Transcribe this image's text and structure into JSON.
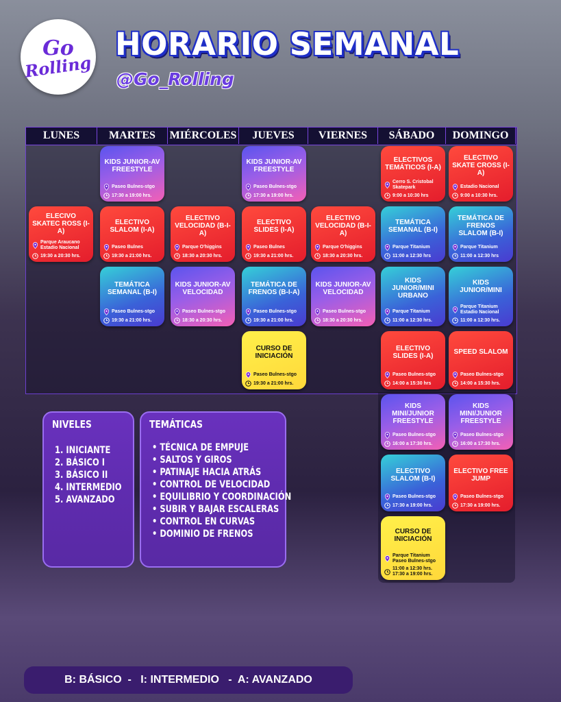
{
  "logo": [
    "Go",
    "Rolling"
  ],
  "header": {
    "title": "HORARIO SEMANAL",
    "handle": "@Go_Rolling"
  },
  "schedule": {
    "days": [
      "LUNES",
      "MARTES",
      "MIÉRCOLES",
      "JUEVES",
      "VIERNES",
      "SÁBADO",
      "DOMINGO"
    ],
    "rows": [
      [
        null,
        {
          "title": "KIDS JUNIOR-AV FREESTYLE",
          "location": "Paseo Bulnes-stgo",
          "time": "17:30 a 19:00 hrs.",
          "color": "pink"
        },
        null,
        {
          "title": "KIDS JUNIOR-AV FREESTYLE",
          "location": "Paseo Bulnes-stgo",
          "time": "17:30 a 19:00 hrs.",
          "color": "pink"
        },
        null,
        {
          "title": "ELECTIVOS TEMÁTICOS (I-A)",
          "location": "Cerro S. Cristobal Skatepark",
          "time": "9:00 a 10:30 hrs",
          "color": "red"
        },
        {
          "title": "ELECTIVO SKATE CROSS (I-A)",
          "location": "Estadio Nacional",
          "time": "9:00 a 10:30 hrs.",
          "color": "red"
        }
      ],
      [
        {
          "title": "ELECIVO SKATEC ROSS (I-A)",
          "location": "Parque Araucano Estadio Nacional",
          "time": "19:30 a 20:30 hrs.",
          "color": "red"
        },
        {
          "title": "ELECTIVO SLALOM (I-A)",
          "location": "Paseo Bulnes",
          "time": "19:30 a 21:00 hrs.",
          "color": "red"
        },
        {
          "title": "ELECTIVO VELOCIDAD (B-I-A)",
          "location": "Parque O'higgins",
          "time": "18:30 a 20:30 hrs.",
          "color": "red"
        },
        {
          "title": "ELECTIVO SLIDES (I-A)",
          "location": "Paseo Bulnes",
          "time": "19:30 a 21:00 hrs.",
          "color": "red"
        },
        {
          "title": "ELECTIVO VELOCIDAD (B-I-A)",
          "location": "Parque O'higgins",
          "time": "18:30 a 20:30 hrs.",
          "color": "red"
        },
        {
          "title": "TEMÁTICA SEMANAL (B-I)",
          "location": "Parque Titanium",
          "time": "11:00 a 12:30 hrs",
          "color": "teal"
        },
        {
          "title": "TEMÁTICA DE FRENOS SLALOM (B-I)",
          "location": "Parque Titanium",
          "time": "11:00 a 12:30 hrs",
          "color": "teal"
        }
      ],
      [
        null,
        {
          "title": "TEMÁTICA SEMANAL (B-I)",
          "location": "Paseo Bulnes-stgo",
          "time": "19:30 a 21:00 hrs.",
          "color": "teal"
        },
        {
          "title": "KIDS JUNIOR-AV VELOCIDAD",
          "location": "Paseo Bulnes-stgo",
          "time": "18:30 a 20:30 hrs.",
          "color": "pink"
        },
        {
          "title": "TEMÁTICA DE FRENOS (B-I-A)",
          "location": "Paseo Bulnes-stgo",
          "time": "19:30 a 21:00 hrs.",
          "color": "teal"
        },
        {
          "title": "KIDS JUNIOR-AV VELOCIDAD",
          "location": "Paseo Bulnes-stgo",
          "time": "18:30 a 20:30 hrs.",
          "color": "pink"
        },
        {
          "title": "KIDS JUNIOR/MINI URBANO",
          "location": "Parque Titanium",
          "time": "11:00 a 12:30 hrs.",
          "color": "teal"
        },
        {
          "title": "KIDS JUNIOR/MINI",
          "location": "Parque Titanium Estadio Nacional",
          "time": "11:00 a 12:30 hrs.",
          "color": "teal"
        }
      ],
      [
        null,
        null,
        null,
        {
          "title": "CURSO DE INICIACIÓN",
          "location": "Paseo Bulnes-stgo",
          "time": "19:30 a 21:00 hrs.",
          "color": "yellow"
        },
        null,
        {
          "title": "ELECTIVO SLIDES (I-A)",
          "location": "Paseo Bulnes-stgo",
          "time": "14:00 a 15:30 hrs",
          "color": "red"
        },
        {
          "title": "SPEED SLALOM",
          "location": "Paseo Bulnes-stgo",
          "time": "14:00 a 15:30 hrs.",
          "color": "red"
        }
      ],
      [
        null,
        null,
        null,
        null,
        null,
        {
          "title": "KIDS MINI/JUNIOR FREESTYLE",
          "location": "Paseo Bulnes-stgo",
          "time": "16:00 a 17:30 hrs.",
          "color": "pink"
        },
        {
          "title": "KIDS MINI/JUNIOR FREESTYLE",
          "location": "Paseo Bulnes-stgo",
          "time": "16:00 a 17:30 hrs.",
          "color": "pink"
        }
      ],
      [
        null,
        null,
        null,
        null,
        null,
        {
          "title": "ELECTIVO SLALOM (B-I)",
          "location": "Paseo Bulnes-stgo",
          "time": "17:30 a 19:00 hrs.",
          "color": "teal"
        },
        {
          "title": "ELECTIVO FREE JUMP",
          "location": "Paseo Bulnes-stgo",
          "time": "17:30 a 19:00 hrs.",
          "color": "red"
        }
      ],
      [
        null,
        null,
        null,
        null,
        null,
        {
          "title": "CURSO DE INICIACIÓN",
          "location": "Parque Titanium Paseo Bulnes-stgo",
          "time": "11:00 a 12:30 hrs. 17:30 a 19:00 hrs.",
          "color": "yellow"
        },
        null
      ]
    ]
  },
  "niveles": {
    "title": "NIVELES",
    "items": [
      "1. INICIANTE",
      "2. BÁSICO I",
      "3. BÁSICO II",
      "4. INTERMEDIO",
      "5. AVANZADO"
    ]
  },
  "tematicas": {
    "title": "TEMÁTICAS",
    "items": [
      "TÉCNICA DE EMPUJE",
      "SALTOS Y GIROS",
      "PATINAJE HACIA ATRÁS",
      "CONTROL DE VELOCIDAD",
      "EQUILIBRIO Y COORDINACIÓN",
      "SUBIR Y BAJAR ESCALERAS",
      "CONTROL EN CURVAS",
      "DOMINIO DE FRENOS"
    ]
  },
  "footer": "B: BÁSICO  -   I: INTERMEDIO   -  A: AVANZADO"
}
